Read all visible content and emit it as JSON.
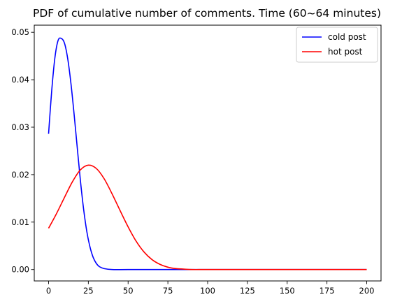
{
  "chart_data": {
    "type": "line",
    "title": "PDF of cumulative number of comments. Time (60~64 minutes)",
    "xlabel": "",
    "ylabel": "",
    "xlim": [
      -9,
      209
    ],
    "ylim": [
      -0.0024,
      0.0515
    ],
    "xticks": [
      0,
      25,
      50,
      75,
      100,
      125,
      150,
      175,
      200
    ],
    "yticks": [
      0.0,
      0.01,
      0.02,
      0.03,
      0.04,
      0.05
    ],
    "ytick_labels": [
      "0.00",
      "0.01",
      "0.02",
      "0.03",
      "0.04",
      "0.05"
    ],
    "legend_position": "top-right",
    "grid": false,
    "series": [
      {
        "name": "cold post",
        "color": "#0000ff",
        "x": [
          0,
          2,
          4,
          6,
          8,
          10,
          12,
          14,
          16,
          18,
          20,
          22,
          24,
          26,
          28,
          30,
          32,
          35,
          40,
          50,
          75,
          100,
          150,
          200
        ],
        "y": [
          0.0286,
          0.0378,
          0.0447,
          0.0483,
          0.0487,
          0.0477,
          0.0445,
          0.0394,
          0.0329,
          0.0258,
          0.0188,
          0.0128,
          0.0081,
          0.0048,
          0.0026,
          0.0013,
          0.0006,
          0.0002,
          0.0,
          0.0,
          0.0,
          0.0,
          0.0,
          0.0
        ]
      },
      {
        "name": "hot post",
        "color": "#ff0000",
        "x": [
          0,
          5,
          10,
          15,
          20,
          25,
          30,
          35,
          40,
          45,
          50,
          55,
          60,
          65,
          70,
          75,
          80,
          85,
          90,
          100,
          125,
          150,
          175,
          200
        ],
        "y": [
          0.0087,
          0.0118,
          0.0152,
          0.0185,
          0.021,
          0.022,
          0.0213,
          0.0191,
          0.0159,
          0.0124,
          0.009,
          0.006,
          0.0037,
          0.0021,
          0.0011,
          0.0005,
          0.0002,
          0.0001,
          0.0,
          0.0,
          0.0,
          0.0,
          0.0,
          0.0
        ]
      }
    ]
  }
}
